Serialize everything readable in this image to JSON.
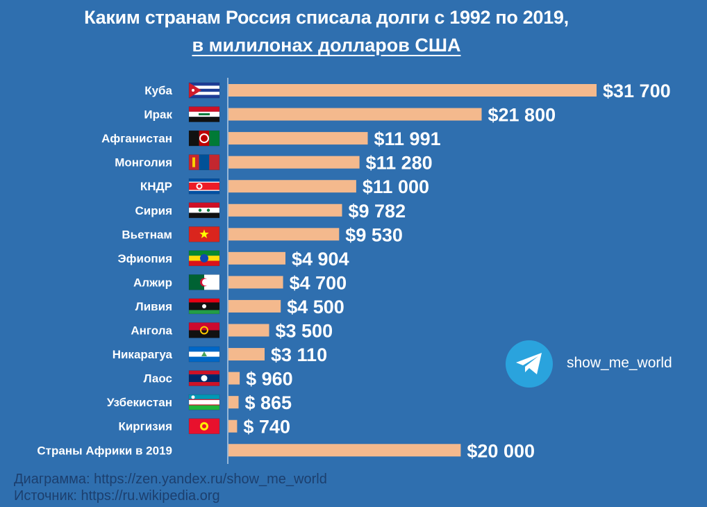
{
  "title": {
    "line1": "Каким странам Россия списала долги с 1992 по 2019,",
    "line2": "в милилонах долларов США"
  },
  "chart_data": {
    "type": "bar",
    "orientation": "horizontal",
    "categories": [
      "Куба",
      "Ирак",
      "Афганистан",
      "Монголия",
      "КНДР",
      "Сирия",
      "Вьетнам",
      "Эфиопия",
      "Алжир",
      "Ливия",
      "Ангола",
      "Никарагуа",
      "Лаос",
      "Узбекистан",
      "Киргизия",
      "Страны Африки в 2019"
    ],
    "values": [
      31700,
      21800,
      11991,
      11280,
      11000,
      9782,
      9530,
      4904,
      4700,
      4500,
      3500,
      3110,
      960,
      865,
      740,
      20000
    ],
    "value_labels": [
      "$31 700",
      "$21 800",
      "$11 991",
      "$11 280",
      "$11 000",
      "$9 782",
      "$9 530",
      "$4 904",
      "$4 700",
      "$4 500",
      "$3 500",
      "$3 110",
      "$ 960",
      "$ 865",
      "$ 740",
      "$20 000"
    ],
    "flags": [
      "cuba-flag",
      "iraq-flag",
      "afghanistan-flag",
      "mongolia-flag",
      "north-korea-flag",
      "syria-flag",
      "vietnam-flag",
      "ethiopia-flag",
      "algeria-flag",
      "libya-flag",
      "angola-flag",
      "nicaragua-flag",
      "laos-flag",
      "uzbekistan-flag",
      "kyrgyzstan-flag",
      ""
    ],
    "xlim": [
      0,
      31700
    ],
    "bar_color": "#f4b98d",
    "xlabel": "",
    "ylabel": ""
  },
  "badge": {
    "channel": "show_me_world",
    "icon": "telegram-icon"
  },
  "footer": {
    "diagram": "Диаграмма: https://zen.yandex.ru/show_me_world",
    "source": "Источник: https://ru.wikipedia.org"
  },
  "colors": {
    "background": "#2f6faf",
    "bar": "#f4b98d",
    "footer_text": "#1c3f6e"
  }
}
